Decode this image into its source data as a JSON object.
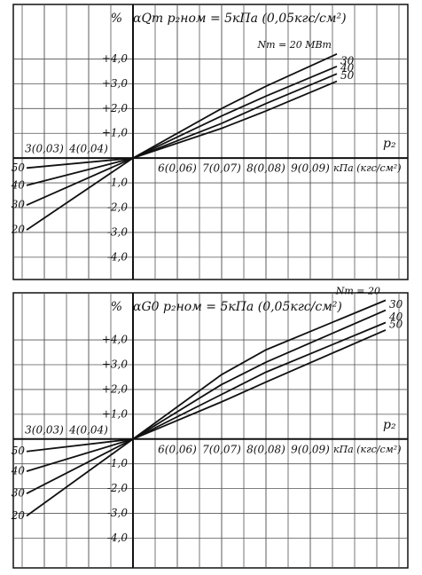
{
  "chart_data": [
    {
      "type": "line",
      "title": "αQт  p₂ном = 5кПа (0,05кгс/см²)",
      "y_label": "%",
      "x_label": "p₂",
      "x_unit": "кПа (кгс/см²)",
      "annotation": "Nт = 20 МВт",
      "x": [
        2.6,
        5,
        7,
        8,
        9.6
      ],
      "series": [
        {
          "name": "20",
          "color": "#111",
          "values": [
            -2.9,
            0,
            2.0,
            2.9,
            4.2
          ]
        },
        {
          "name": "30",
          "color": "#111",
          "values": [
            -1.9,
            0,
            1.7,
            2.5,
            3.7
          ]
        },
        {
          "name": "40",
          "color": "#111",
          "values": [
            -1.1,
            0,
            1.4,
            2.2,
            3.4
          ]
        },
        {
          "name": "50",
          "color": "#111",
          "values": [
            -0.4,
            0,
            1.2,
            1.9,
            3.1
          ]
        }
      ],
      "xlim": [
        2.3,
        11.2
      ],
      "ylim": [
        -4.9,
        6.2
      ],
      "xticks": [
        {
          "value": 3,
          "label": "3(0,03)"
        },
        {
          "value": 4,
          "label": "4(0,04)"
        },
        {
          "value": 6,
          "label": "6(0,06)"
        },
        {
          "value": 7,
          "label": "7(0,07)"
        },
        {
          "value": 8,
          "label": "8(0,08)"
        },
        {
          "value": 9,
          "label": "9(0,09)"
        }
      ],
      "yticks": [
        {
          "value": 4,
          "label": "+4,0"
        },
        {
          "value": 3,
          "label": "+3,0"
        },
        {
          "value": 2,
          "label": "+2,0"
        },
        {
          "value": 1,
          "label": "+1,0"
        },
        {
          "value": -1,
          "label": "-1,0"
        },
        {
          "value": -2,
          "label": "-2,0"
        },
        {
          "value": -3,
          "label": "-3,0"
        },
        {
          "value": -4,
          "label": "-4,0"
        }
      ],
      "grid": true
    },
    {
      "type": "line",
      "title": "αG0  p₂ном = 5кПа (0,05кгс/см²)",
      "y_label": "%",
      "x_label": "p₂",
      "x_unit": "кПа (кгс/см²)",
      "annotation": "Nт = 20",
      "x": [
        2.6,
        5,
        7,
        8,
        10.7
      ],
      "series": [
        {
          "name": "20",
          "color": "#111",
          "values": [
            -3.1,
            0,
            2.6,
            3.6,
            5.6
          ]
        },
        {
          "name": "30",
          "color": "#111",
          "values": [
            -2.2,
            0,
            2.2,
            3.1,
            5.2
          ]
        },
        {
          "name": "40",
          "color": "#111",
          "values": [
            -1.3,
            0,
            1.8,
            2.7,
            4.7
          ]
        },
        {
          "name": "50",
          "color": "#111",
          "values": [
            -0.5,
            0,
            1.5,
            2.3,
            4.4
          ]
        }
      ],
      "xlim": [
        2.3,
        11.2
      ],
      "ylim": [
        -5.2,
        5.9
      ],
      "xticks": [
        {
          "value": 3,
          "label": "3(0,03)"
        },
        {
          "value": 4,
          "label": "4(0,04)"
        },
        {
          "value": 6,
          "label": "6(0,06)"
        },
        {
          "value": 7,
          "label": "7(0,07)"
        },
        {
          "value": 8,
          "label": "8(0,08)"
        },
        {
          "value": 9,
          "label": "9(0,09)"
        }
      ],
      "yticks": [
        {
          "value": 4,
          "label": "+4,0"
        },
        {
          "value": 3,
          "label": "+3,0"
        },
        {
          "value": 2,
          "label": "+2,0"
        },
        {
          "value": 1,
          "label": "+1,0"
        },
        {
          "value": -1,
          "label": "-1,0"
        },
        {
          "value": -2,
          "label": "-2,0"
        },
        {
          "value": -3,
          "label": "-3,0"
        },
        {
          "value": -4,
          "label": "-4,0"
        }
      ],
      "grid": true
    }
  ]
}
